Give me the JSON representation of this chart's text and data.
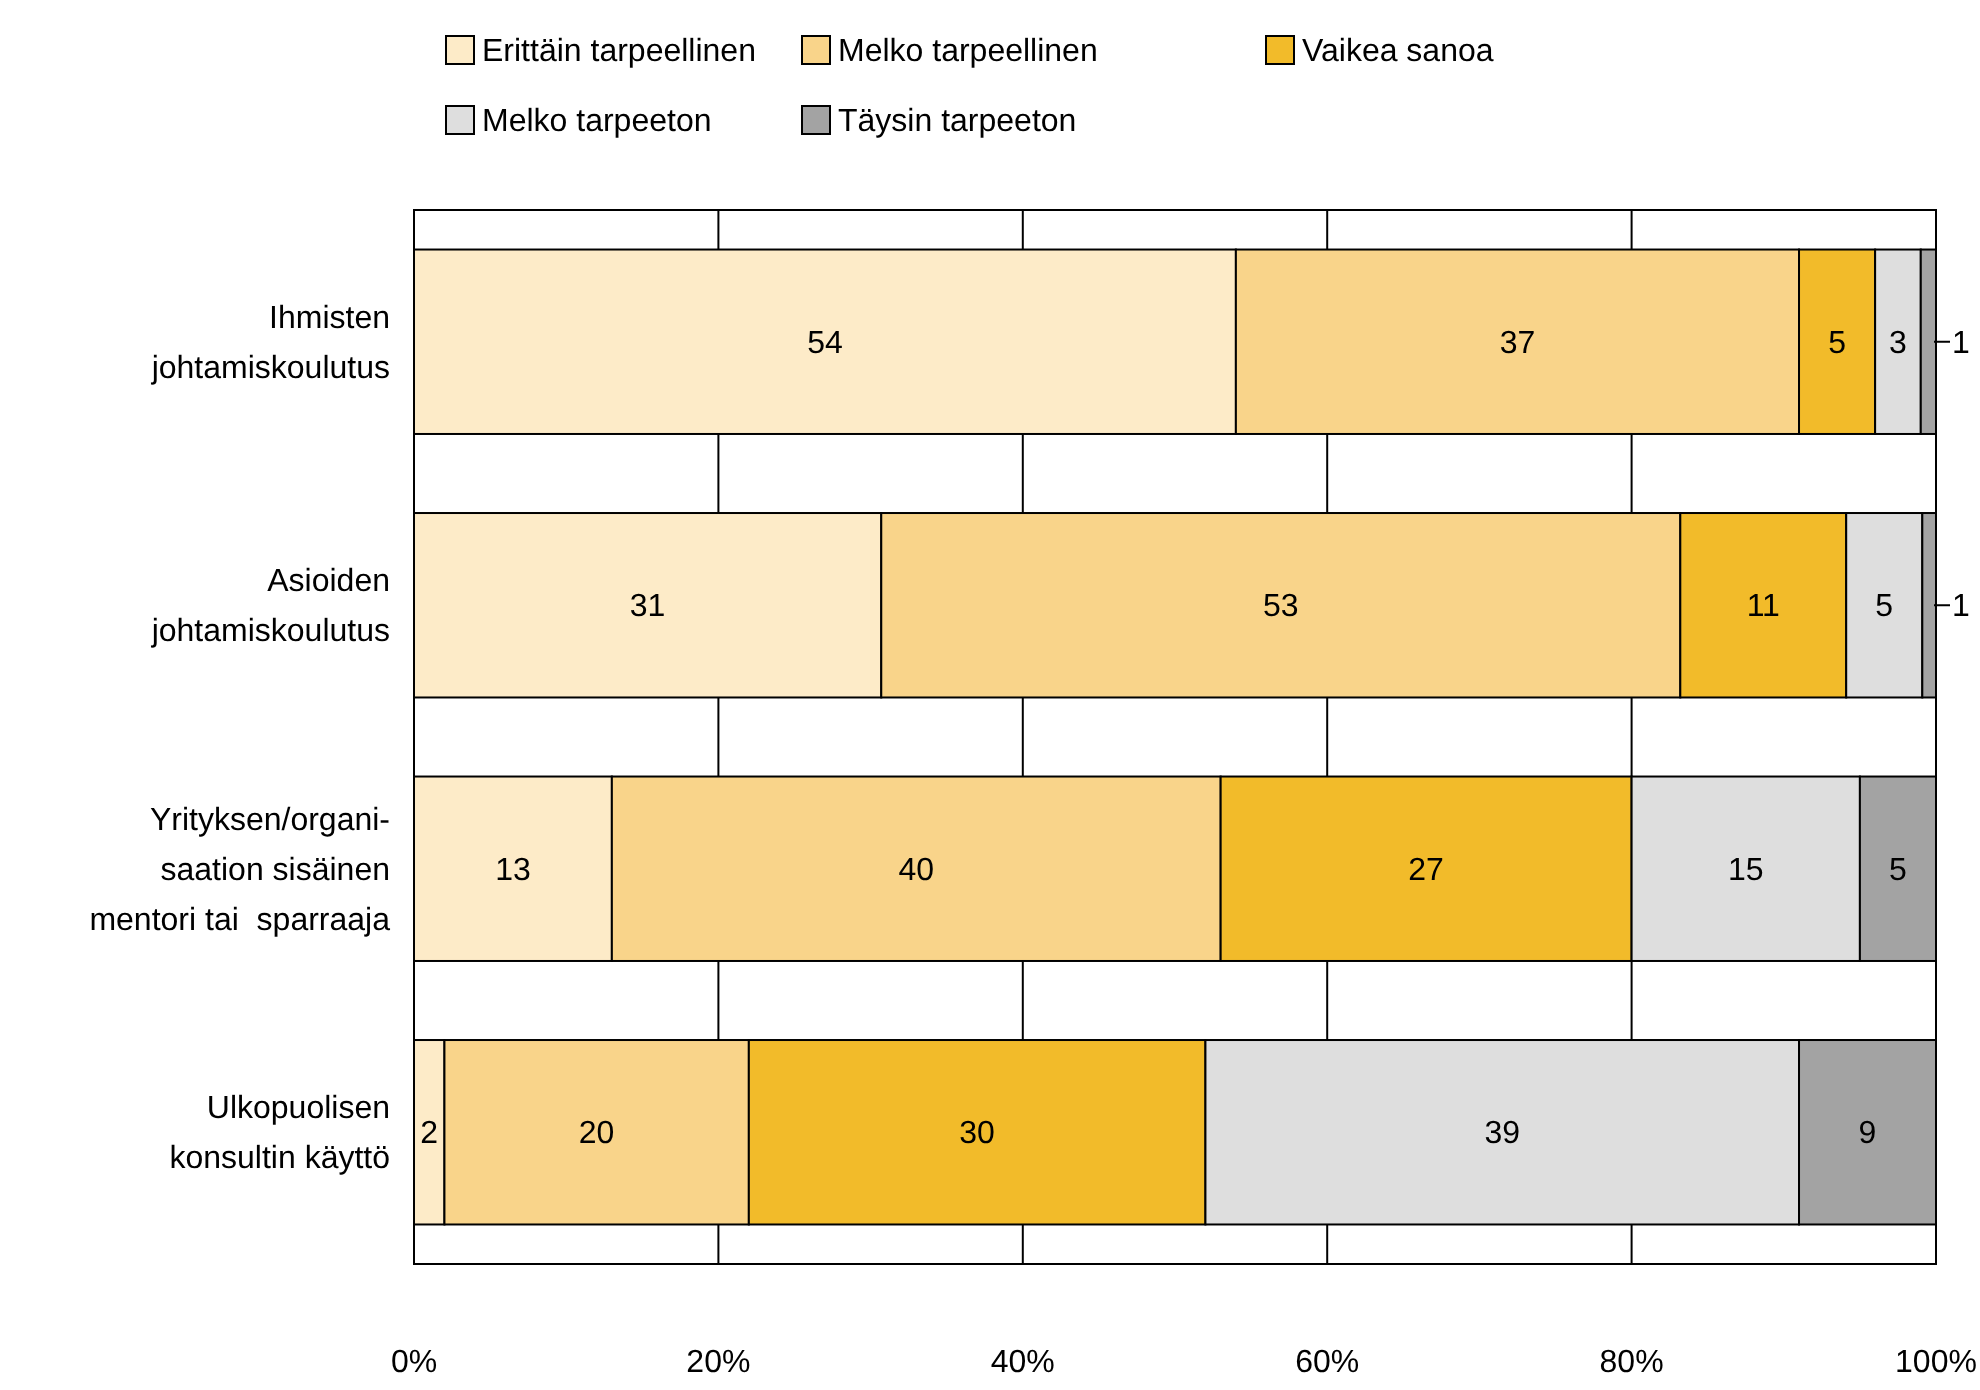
{
  "chart_data": {
    "type": "bar",
    "orientation": "horizontal",
    "stacked": true,
    "categories": [
      "Ihmisten\njohtamiskoulutus",
      "Asioiden\njohtamiskoulutus",
      "Yrityksen/organi-\nsaation sisäinen\nmentori tai  sparraaja",
      "Ulkopuolisen\nkonsultin käyttö"
    ],
    "series": [
      {
        "name": "Erittäin tarpeellinen",
        "color": "#fdebc8",
        "values": [
          54,
          30.7,
          13,
          2
        ],
        "value_labels": [
          "54",
          "31",
          "13",
          "2"
        ]
      },
      {
        "name": "Melko tarpeellinen",
        "color": "#f9d48a",
        "values": [
          37,
          52.5,
          40,
          20
        ],
        "value_labels": [
          "37",
          "53",
          "40",
          "20"
        ]
      },
      {
        "name": "Vaikea sanoa",
        "color": "#f2bb2a",
        "values": [
          5,
          10.9,
          27,
          30
        ],
        "value_labels": [
          "5",
          "11",
          "27",
          "30"
        ]
      },
      {
        "name": "Melko tarpeeton",
        "color": "#dedede",
        "values": [
          3,
          5,
          15,
          39
        ],
        "value_labels": [
          "3",
          "5",
          "15",
          "39"
        ]
      },
      {
        "name": "Täysin tarpeeton",
        "color": "#a3a3a3",
        "values": [
          1,
          0.9,
          5,
          9
        ],
        "value_labels": [
          "1",
          "1",
          "5",
          "9"
        ]
      }
    ],
    "xlim": [
      0,
      100
    ],
    "xticks": [
      {
        "value": 0,
        "label": "0%"
      },
      {
        "value": 20,
        "label": "20%"
      },
      {
        "value": 40,
        "label": "40%"
      },
      {
        "value": 60,
        "label": "60%"
      },
      {
        "value": 80,
        "label": "80%"
      },
      {
        "value": 100,
        "label": "100%"
      }
    ],
    "grid": "x",
    "legend": "top"
  }
}
